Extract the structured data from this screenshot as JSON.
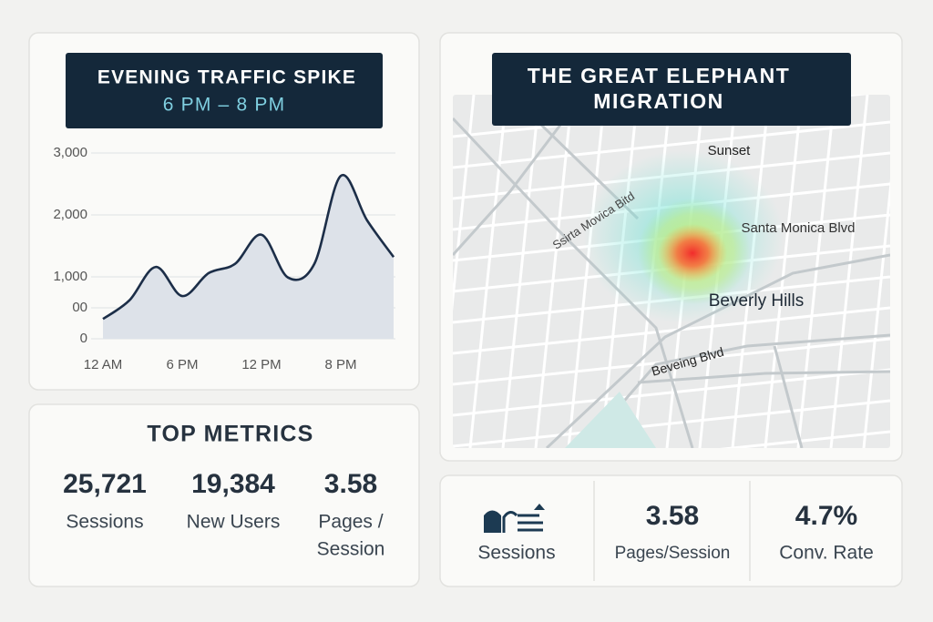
{
  "chart_data": {
    "type": "line",
    "title": "EVENING TRAFFIC SPIKE",
    "subtitle": "6 PM – 8 PM",
    "categories": [
      "12 AM",
      null,
      null,
      "6 PM",
      null,
      null,
      "12 PM",
      null,
      null,
      "8 PM",
      null,
      null
    ],
    "values": [
      320,
      620,
      1160,
      690,
      1060,
      1210,
      1680,
      990,
      1210,
      2630,
      1910,
      1320
    ],
    "color": "#1c2e48",
    "fill": "#dde2e9",
    "ylim": [
      0,
      3000
    ],
    "yticks": [
      0,
      {
        "value": 500,
        "label": "00"
      },
      {
        "value": 1000,
        "label": "1,000"
      },
      {
        "value": 2000,
        "label": "2,000"
      },
      {
        "value": 3000,
        "label": "3,000"
      }
    ],
    "grid": true
  },
  "metrics": {
    "title": "TOP METRICS",
    "items": [
      {
        "value": "25,721",
        "label": "Sessions"
      },
      {
        "value": "19,384",
        "label": "New Users"
      },
      {
        "value": "3.58",
        "label_lines": [
          "Pages /",
          "Session"
        ]
      }
    ]
  },
  "map": {
    "title_lines": [
      "THE GREAT ELEPHANT",
      "MIGRATION"
    ],
    "labels": [
      "Sunset",
      "Ssirta Movica Bitd",
      "Santa Monica Blvd",
      "Beverly Hills",
      "Beveing Blvd"
    ]
  },
  "summary": {
    "items": [
      {
        "label": "Sessions"
      },
      {
        "value": "3.58",
        "label": "Pages/Session"
      },
      {
        "value": "4.7%",
        "label": "Conv. Rate"
      }
    ]
  }
}
